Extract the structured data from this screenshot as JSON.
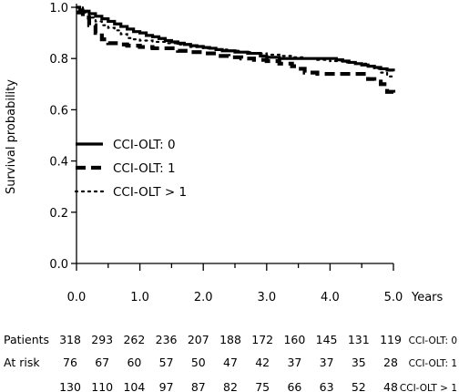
{
  "chart_data": {
    "type": "line",
    "ylabel": "Survival probability",
    "x_unit": "Years",
    "xlim": [
      0,
      5
    ],
    "ylim": [
      0,
      1
    ],
    "x_ticks": [
      "0.0",
      "1.0",
      "2.0",
      "3.0",
      "4.0",
      "5.0"
    ],
    "y_ticks": [
      "0.0",
      "0.2",
      "0.4",
      "0.6",
      "0.8",
      "1.0"
    ],
    "legend_position": "center-left",
    "series": [
      {
        "name": "CCI-OLT: 0",
        "style": "solid",
        "x": [
          0,
          0.05,
          0.1,
          0.2,
          0.3,
          0.4,
          0.5,
          0.6,
          0.7,
          0.8,
          0.9,
          1.0,
          1.1,
          1.2,
          1.3,
          1.4,
          1.5,
          1.6,
          1.7,
          1.8,
          1.9,
          2.0,
          2.1,
          2.2,
          2.3,
          2.5,
          2.7,
          2.9,
          3.0,
          3.2,
          3.4,
          3.6,
          3.8,
          4.0,
          4.1,
          4.2,
          4.3,
          4.4,
          4.5,
          4.6,
          4.7,
          4.8,
          4.9,
          5.0
        ],
        "y": [
          1.0,
          0.99,
          0.985,
          0.975,
          0.965,
          0.955,
          0.945,
          0.935,
          0.925,
          0.915,
          0.905,
          0.9,
          0.89,
          0.885,
          0.878,
          0.87,
          0.865,
          0.86,
          0.855,
          0.85,
          0.847,
          0.843,
          0.84,
          0.835,
          0.83,
          0.825,
          0.82,
          0.81,
          0.805,
          0.8,
          0.8,
          0.8,
          0.8,
          0.8,
          0.795,
          0.79,
          0.785,
          0.78,
          0.775,
          0.77,
          0.765,
          0.76,
          0.755,
          0.75
        ]
      },
      {
        "name": "CCI-OLT: 1",
        "style": "dashed",
        "x": [
          0,
          0.1,
          0.2,
          0.3,
          0.4,
          0.5,
          0.6,
          0.7,
          0.8,
          1.0,
          1.2,
          1.4,
          1.6,
          1.8,
          2.0,
          2.2,
          2.4,
          2.6,
          2.8,
          3.0,
          3.2,
          3.4,
          3.5,
          3.6,
          3.8,
          4.0,
          4.2,
          4.4,
          4.6,
          4.7,
          4.8,
          4.9,
          5.0
        ],
        "y": [
          0.98,
          0.96,
          0.93,
          0.9,
          0.875,
          0.86,
          0.86,
          0.855,
          0.85,
          0.845,
          0.84,
          0.84,
          0.83,
          0.825,
          0.82,
          0.81,
          0.805,
          0.8,
          0.795,
          0.79,
          0.78,
          0.77,
          0.76,
          0.745,
          0.74,
          0.74,
          0.74,
          0.74,
          0.72,
          0.71,
          0.7,
          0.67,
          0.66
        ]
      },
      {
        "name": "CCI-OLT > 1",
        "style": "dotted",
        "x": [
          0,
          0.1,
          0.2,
          0.3,
          0.4,
          0.5,
          0.6,
          0.7,
          0.8,
          0.9,
          1.0,
          1.2,
          1.4,
          1.6,
          1.8,
          2.0,
          2.2,
          2.4,
          2.6,
          2.8,
          3.0,
          3.2,
          3.4,
          3.6,
          3.8,
          4.0,
          4.2,
          4.4,
          4.6,
          4.7,
          4.8,
          4.9,
          5.0
        ],
        "y": [
          1.0,
          0.98,
          0.96,
          0.945,
          0.93,
          0.92,
          0.91,
          0.895,
          0.88,
          0.875,
          0.87,
          0.865,
          0.86,
          0.855,
          0.845,
          0.84,
          0.835,
          0.83,
          0.825,
          0.82,
          0.815,
          0.81,
          0.805,
          0.8,
          0.795,
          0.79,
          0.785,
          0.78,
          0.77,
          0.76,
          0.745,
          0.73,
          0.72
        ]
      }
    ]
  },
  "risk_table": {
    "row_labels": [
      "Patients",
      "At risk",
      ""
    ],
    "rows": [
      {
        "group": "CCI-OLT: 0",
        "values": [
          "318",
          "293",
          "262",
          "236",
          "207",
          "188",
          "172",
          "160",
          "145",
          "131",
          "119"
        ]
      },
      {
        "group": "CCI-OLT: 1",
        "values": [
          "76",
          "67",
          "60",
          "57",
          "50",
          "47",
          "42",
          "37",
          "37",
          "35",
          "28"
        ]
      },
      {
        "group": "CCI-OLT > 1",
        "values": [
          "130",
          "110",
          "104",
          "97",
          "87",
          "82",
          "75",
          "66",
          "63",
          "52",
          "48"
        ]
      }
    ]
  }
}
